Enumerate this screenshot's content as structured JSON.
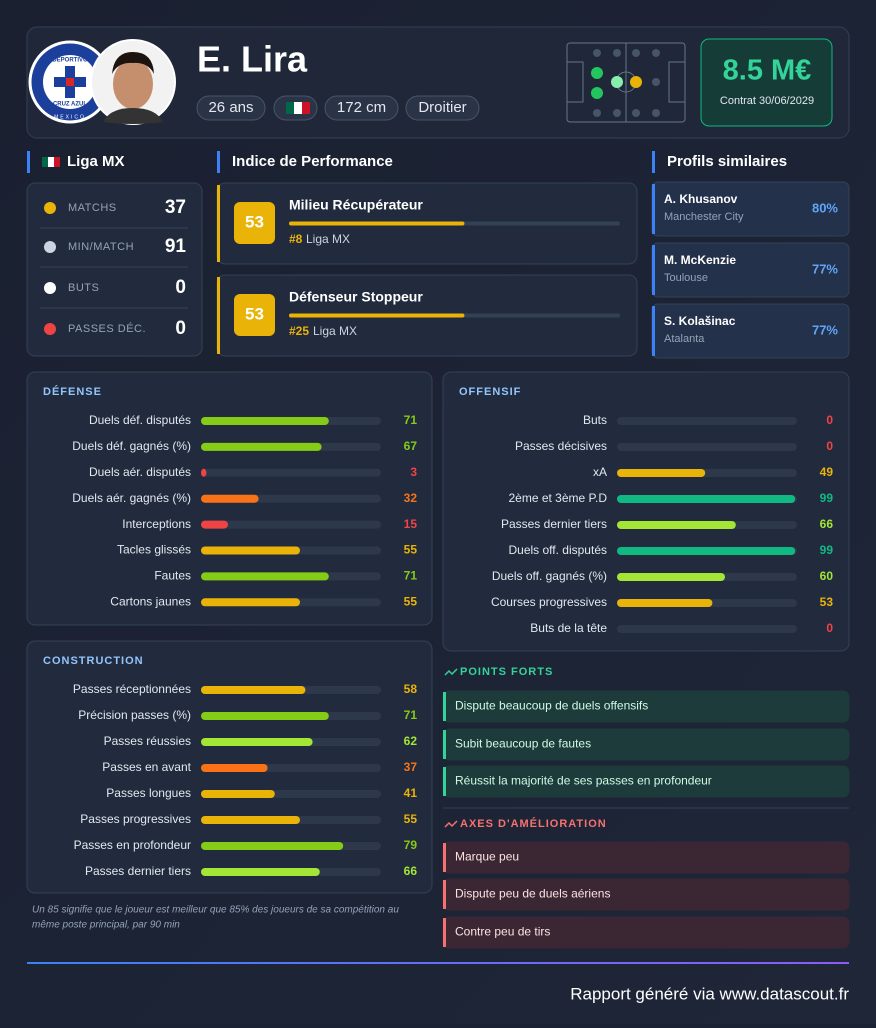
{
  "club_logo": {
    "top": "DEPORTIVO",
    "bottom": "CRUZ AZUL",
    "ring": "MEXICO"
  },
  "header": {
    "name": "E. Lira",
    "age": "26 ans",
    "height": "172 cm",
    "foot": "Droitier",
    "market_value": "8.5 M€",
    "contract": "Contrat 30/06/2029"
  },
  "league": {
    "title": "Liga MX",
    "stats": [
      {
        "label": "MATCHS",
        "value": 37
      },
      {
        "label": "MIN/MATCH",
        "value": 91
      },
      {
        "label": "BUTS",
        "value": 0
      },
      {
        "label": "PASSES DÉC.",
        "value": 0
      }
    ]
  },
  "performance": {
    "title": "Indice de Performance",
    "roles": [
      {
        "score": 53,
        "name": "Milieu Récupérateur",
        "rank": "#8",
        "league": "Liga MX"
      },
      {
        "score": 53,
        "name": "Défenseur Stoppeur",
        "rank": "#25",
        "league": "Liga MX"
      }
    ]
  },
  "similar": {
    "title": "Profils similaires",
    "players": [
      {
        "name": "A. Khusanov",
        "club": "Manchester City",
        "similarity": "80%"
      },
      {
        "name": "M. McKenzie",
        "club": "Toulouse",
        "similarity": "77%"
      },
      {
        "name": "S. Kolašinac",
        "club": "Atalanta",
        "similarity": "77%"
      }
    ]
  },
  "defense": {
    "title": "DÉFENSE",
    "stats": [
      {
        "label": "Duels déf. disputés",
        "value": 71,
        "color": "#84cc16"
      },
      {
        "label": "Duels déf. gagnés (%)",
        "value": 67,
        "color": "#84cc16"
      },
      {
        "label": "Duels aér. disputés",
        "value": 3,
        "color": "#ef4444"
      },
      {
        "label": "Duels aér. gagnés (%)",
        "value": 32,
        "color": "#f97316"
      },
      {
        "label": "Interceptions",
        "value": 15,
        "color": "#ef4444"
      },
      {
        "label": "Tacles glissés",
        "value": 55,
        "color": "#eab308"
      },
      {
        "label": "Fautes",
        "value": 71,
        "color": "#84cc16"
      },
      {
        "label": "Cartons jaunes",
        "value": 55,
        "color": "#eab308"
      }
    ]
  },
  "offense": {
    "title": "OFFENSIF",
    "stats": [
      {
        "label": "Buts",
        "value": 0,
        "color": "#ef4444"
      },
      {
        "label": "Passes décisives",
        "value": 0,
        "color": "#ef4444"
      },
      {
        "label": "xA",
        "value": 49,
        "color": "#eab308"
      },
      {
        "label": "2ème et 3ème P.D",
        "value": 99,
        "color": "#10b981"
      },
      {
        "label": "Passes dernier tiers",
        "value": 66,
        "color": "#a3e635"
      },
      {
        "label": "Duels off. disputés",
        "value": 99,
        "color": "#10b981"
      },
      {
        "label": "Duels off. gagnés (%)",
        "value": 60,
        "color": "#a3e635"
      },
      {
        "label": "Courses progressives",
        "value": 53,
        "color": "#eab308"
      },
      {
        "label": "Buts de la tête",
        "value": 0,
        "color": "#ef4444"
      }
    ]
  },
  "construction": {
    "title": "CONSTRUCTION",
    "stats": [
      {
        "label": "Passes réceptionnées",
        "value": 58,
        "color": "#eab308"
      },
      {
        "label": "Précision passes (%)",
        "value": 71,
        "color": "#84cc16"
      },
      {
        "label": "Passes réussies",
        "value": 62,
        "color": "#a3e635"
      },
      {
        "label": "Passes en avant",
        "value": 37,
        "color": "#f97316"
      },
      {
        "label": "Passes longues",
        "value": 41,
        "color": "#eab308"
      },
      {
        "label": "Passes progressives",
        "value": 55,
        "color": "#eab308"
      },
      {
        "label": "Passes en profondeur",
        "value": 79,
        "color": "#84cc16"
      },
      {
        "label": "Passes dernier tiers",
        "value": 66,
        "color": "#a3e635"
      }
    ]
  },
  "strengths": {
    "title": "POINTS FORTS",
    "items": [
      "Dispute beaucoup de duels offensifs",
      "Subit beaucoup de fautes",
      "Réussit la majorité de ses passes en profondeur"
    ]
  },
  "weaknesses": {
    "title": "AXES D'AMÉLIORATION",
    "items": [
      "Marque peu",
      "Dispute peu de duels aériens",
      "Contre peu de tirs"
    ]
  },
  "footnote": [
    "Un 85 signifie que le joueur est meilleur que 85% des joueurs de sa compétition au",
    "même poste principal, par 90 min"
  ],
  "footer": "Rapport généré via www.datascout.fr"
}
